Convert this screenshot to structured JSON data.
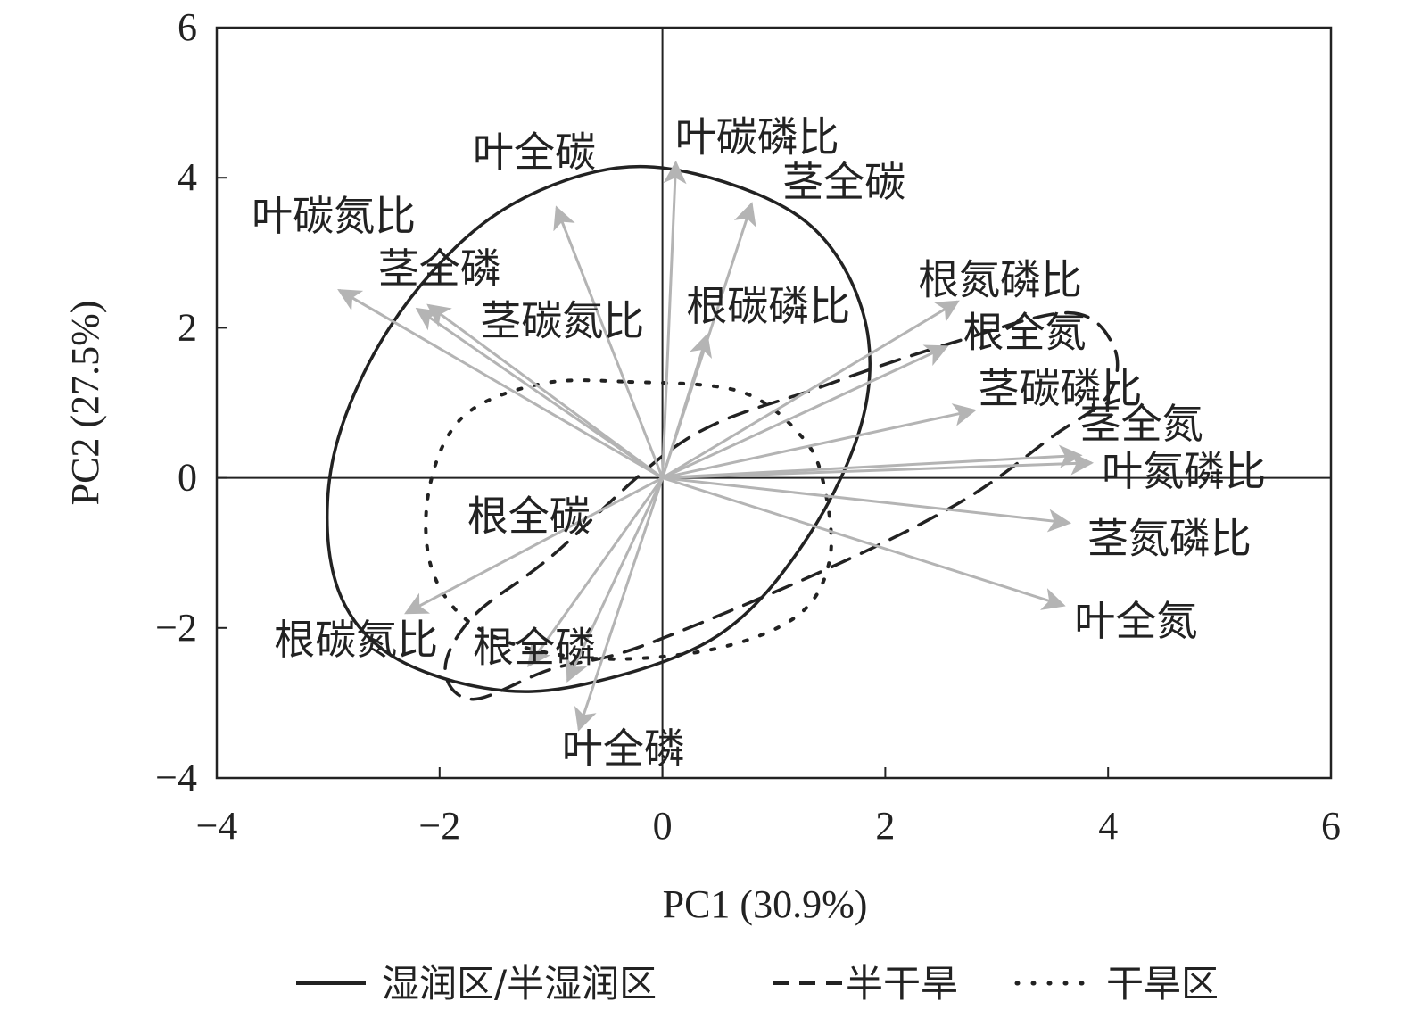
{
  "chart_data": {
    "type": "scatter",
    "subtype": "pca-biplot",
    "title": "",
    "xlabel": "PC1 (30.9%)",
    "ylabel": "PC2 (27.5%)",
    "xlim": [
      -4,
      6
    ],
    "ylim": [
      -4,
      6
    ],
    "xticks": [
      -4,
      -2,
      0,
      2,
      4,
      6
    ],
    "yticks": [
      -4,
      -2,
      0,
      2,
      4,
      6
    ],
    "xtick_labels": [
      "−4",
      "−2",
      "0",
      "2",
      "4",
      "6"
    ],
    "ytick_labels": [
      "−4",
      "−2",
      "0",
      "2",
      "4",
      "6"
    ],
    "grid": false,
    "reference_lines": {
      "x": 0,
      "y": 0
    },
    "vector_color": "#b4b4b4",
    "vectors": [
      {
        "name": "叶全碳",
        "x": -0.95,
        "y": 3.6,
        "label_x": -1.15,
        "label_y": 4.3
      },
      {
        "name": "叶碳磷比",
        "x": 0.12,
        "y": 4.2,
        "label_x": 0.85,
        "label_y": 4.5
      },
      {
        "name": "茎全碳",
        "x": 0.8,
        "y": 3.65,
        "label_x": 1.63,
        "label_y": 3.9
      },
      {
        "name": "叶碳氮比",
        "x": -2.9,
        "y": 2.5,
        "label_x": -2.95,
        "label_y": 3.45
      },
      {
        "name": "茎全磷",
        "x": -2.1,
        "y": 2.3,
        "label_x": -2.0,
        "label_y": 2.75
      },
      {
        "name": "茎碳氮比",
        "x": -2.2,
        "y": 2.25,
        "label_x": -0.9,
        "label_y": 2.05
      },
      {
        "name": "根碳磷比",
        "x": 0.4,
        "y": 1.9,
        "label_x": 0.95,
        "label_y": 2.25
      },
      {
        "name": "根氮磷比",
        "x": 2.65,
        "y": 2.35,
        "label_x": 3.03,
        "label_y": 2.6
      },
      {
        "name": "根全氮",
        "x": 2.55,
        "y": 1.75,
        "label_x": 3.25,
        "label_y": 1.9
      },
      {
        "name": "茎碳磷比",
        "x": 2.8,
        "y": 0.9,
        "label_x": 3.57,
        "label_y": 1.15
      },
      {
        "name": "茎全氮",
        "x": 3.75,
        "y": 0.3,
        "label_x": 4.3,
        "label_y": 0.68
      },
      {
        "name": "叶氮磷比",
        "x": 3.85,
        "y": 0.2,
        "label_x": 4.68,
        "label_y": 0.05
      },
      {
        "name": "茎氮磷比",
        "x": 3.65,
        "y": -0.6,
        "label_x": 4.55,
        "label_y": -0.85
      },
      {
        "name": "叶全氮",
        "x": 3.6,
        "y": -1.7,
        "label_x": 4.25,
        "label_y": -1.95
      },
      {
        "name": "根全碳",
        "x": -2.3,
        "y": -1.8,
        "label_x": -1.2,
        "label_y": -0.55
      },
      {
        "name": "根碳氮比",
        "x": -1.2,
        "y": -2.5,
        "label_x": -2.75,
        "label_y": -2.2
      },
      {
        "name": "根全磷",
        "x": -0.85,
        "y": -2.7,
        "label_x": -1.15,
        "label_y": -2.3
      },
      {
        "name": "叶全磷",
        "x": -0.75,
        "y": -3.35,
        "label_x": -0.35,
        "label_y": -3.65
      }
    ],
    "ellipses": [
      {
        "name": "湿润区/半湿润区",
        "style": "solid",
        "color": "#222222",
        "path": [
          [
            -0.6,
            4.08
          ],
          [
            0.3,
            4.05
          ],
          [
            1.3,
            3.4
          ],
          [
            1.8,
            2.2
          ],
          [
            1.8,
            0.8
          ],
          [
            1.3,
            -0.8
          ],
          [
            0.5,
            -2.1
          ],
          [
            -0.7,
            -2.75
          ],
          [
            -1.6,
            -2.8
          ],
          [
            -2.5,
            -2.3
          ],
          [
            -2.95,
            -1.3
          ],
          [
            -2.95,
            0.3
          ],
          [
            -2.45,
            2.0
          ],
          [
            -1.6,
            3.4
          ]
        ]
      },
      {
        "name": "半干旱",
        "style": "dashed",
        "color": "#222222",
        "path": [
          [
            3.65,
            2.2
          ],
          [
            4.05,
            1.75
          ],
          [
            4.0,
            1.1
          ],
          [
            3.5,
            0.55
          ],
          [
            2.7,
            -0.3
          ],
          [
            1.5,
            -1.2
          ],
          [
            -0.2,
            -2.25
          ],
          [
            -1.0,
            -2.55
          ],
          [
            -1.7,
            -2.95
          ],
          [
            -1.95,
            -2.55
          ],
          [
            -1.7,
            -1.85
          ],
          [
            -1.0,
            -1.05
          ],
          [
            0.2,
            0.5
          ],
          [
            1.4,
            1.2
          ],
          [
            2.6,
            1.8
          ]
        ]
      },
      {
        "name": "干旱区",
        "style": "dotted",
        "color": "#222222",
        "path": [
          [
            -0.3,
            1.28
          ],
          [
            0.7,
            1.15
          ],
          [
            1.25,
            0.55
          ],
          [
            1.45,
            -0.1
          ],
          [
            1.5,
            -1.1
          ],
          [
            1.2,
            -1.85
          ],
          [
            0.4,
            -2.3
          ],
          [
            -0.7,
            -2.4
          ],
          [
            -1.6,
            -2.05
          ],
          [
            -2.05,
            -1.3
          ],
          [
            -2.1,
            -0.2
          ],
          [
            -1.8,
            0.8
          ],
          [
            -1.1,
            1.25
          ]
        ]
      }
    ],
    "legend": {
      "position": "bottom",
      "entries": [
        {
          "label": "湿润区/半湿润区",
          "style": "solid"
        },
        {
          "label": "半干旱",
          "style": "dashed"
        },
        {
          "label": "干旱区",
          "style": "dotted"
        }
      ]
    }
  }
}
